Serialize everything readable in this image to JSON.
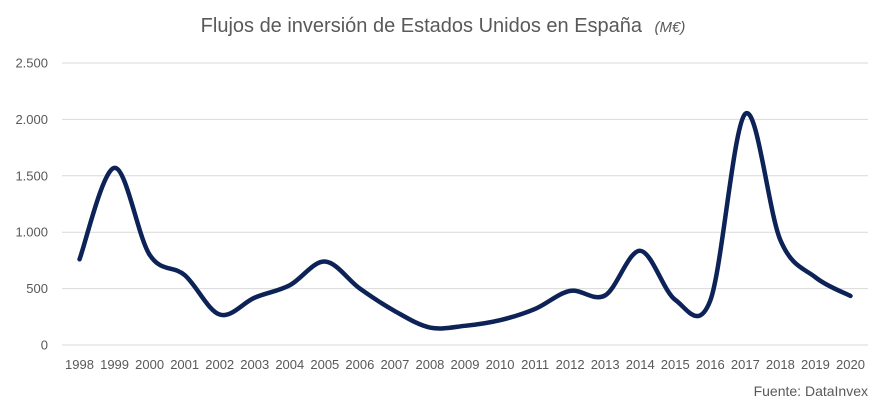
{
  "chart_data": {
    "type": "line",
    "title": "Flujos de inversión de Estados Unidos en España",
    "title_unit": "(M€)",
    "xlabel": "",
    "ylabel": "",
    "categories": [
      "1998",
      "1999",
      "2000",
      "2001",
      "2002",
      "2003",
      "2004",
      "2005",
      "2006",
      "2007",
      "2008",
      "2009",
      "2010",
      "2011",
      "2012",
      "2013",
      "2014",
      "2015",
      "2016",
      "2017",
      "2018",
      "2019",
      "2020"
    ],
    "y_tick_labels": [
      "0",
      "500",
      "1.000",
      "1.500",
      "2.000",
      "2.500"
    ],
    "y_tick_values": [
      0,
      500,
      1000,
      1500,
      2000,
      2500
    ],
    "ylim": [
      0,
      2500
    ],
    "grid": true,
    "series": [
      {
        "name": "Flujos de inversión",
        "color": "#0d2357",
        "values": [
          760,
          1570,
          800,
          620,
          270,
          420,
          530,
          740,
          500,
          300,
          155,
          170,
          220,
          320,
          480,
          440,
          835,
          400,
          395,
          2050,
          930,
          600,
          435
        ]
      }
    ],
    "source": "Fuente: DataInvex"
  }
}
